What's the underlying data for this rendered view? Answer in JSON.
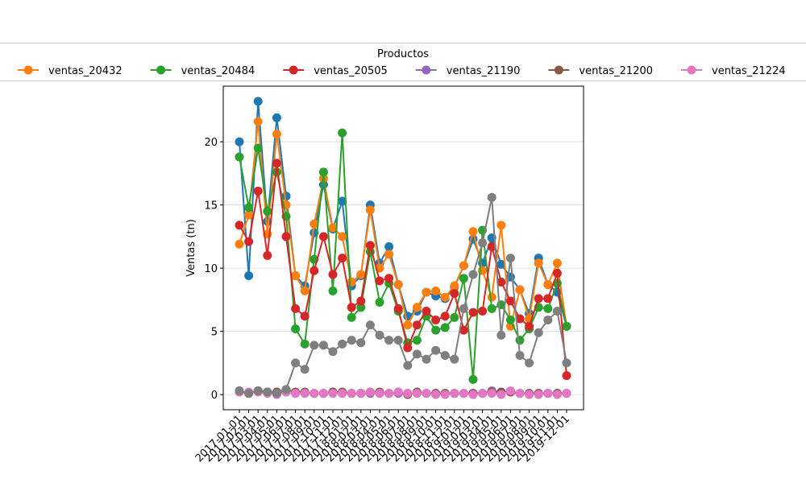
{
  "chart_data": {
    "type": "line",
    "ylabel": "Ventas (tn)",
    "legend": {
      "title": "Productos",
      "position": "top"
    },
    "ylim": [
      -1.2,
      24.4
    ],
    "yticks": [
      0,
      5,
      10,
      15,
      20
    ],
    "grid": true,
    "categories": [
      "2017-01-01",
      "2017-02-01",
      "2017-03-01",
      "2017-04-01",
      "2017-05-01",
      "2017-06-01",
      "2017-07-01",
      "2017-08-01",
      "2017-09-01",
      "2017-10-01",
      "2017-11-01",
      "2017-12-01",
      "2018-01-01",
      "2018-02-01",
      "2018-03-01",
      "2018-04-01",
      "2018-05-01",
      "2018-06-01",
      "2018-07-01",
      "2018-08-01",
      "2018-09-01",
      "2018-10-01",
      "2018-11-01",
      "2018-12-01",
      "2019-01-01",
      "2019-02-01",
      "2019-03-01",
      "2019-04-01",
      "2019-05-01",
      "2019-06-01",
      "2019-07-01",
      "2019-08-01",
      "2019-09-01",
      "2019-10-01",
      "2019-11-01",
      "2019-12-01"
    ],
    "series": [
      {
        "color": "#1f77b4",
        "values": [
          20.0,
          9.4,
          23.2,
          13.7,
          21.9,
          15.7,
          9.4,
          8.6,
          12.8,
          16.6,
          13.1,
          15.3,
          8.6,
          9.4,
          15.0,
          10.4,
          11.7,
          8.7,
          6.2,
          6.6,
          8.1,
          7.8,
          7.6,
          8.5,
          10.2,
          12.3,
          10.4,
          12.4,
          10.3,
          9.3,
          8.3,
          6.4,
          10.8,
          8.7,
          8.1,
          5.4
        ]
      },
      {
        "name": "ventas_20432",
        "color": "#ff7f0e",
        "values": [
          11.9,
          14.2,
          21.6,
          12.7,
          20.6,
          15.0,
          9.4,
          8.2,
          13.5,
          17.1,
          13.2,
          12.5,
          8.9,
          9.5,
          14.6,
          10.0,
          11.1,
          8.7,
          5.5,
          6.9,
          8.1,
          8.2,
          7.7,
          8.6,
          10.2,
          12.9,
          9.8,
          7.7,
          13.4,
          5.4,
          8.3,
          6.0,
          10.4,
          8.7,
          10.4,
          5.4
        ]
      },
      {
        "name": "ventas_20484",
        "color": "#2ca02c",
        "values": [
          18.8,
          14.8,
          19.5,
          14.5,
          17.6,
          14.1,
          5.2,
          4.0,
          10.7,
          17.6,
          8.2,
          20.7,
          6.1,
          6.9,
          11.3,
          7.3,
          8.8,
          6.6,
          4.1,
          4.3,
          6.2,
          5.1,
          5.3,
          6.1,
          9.2,
          1.2,
          13.0,
          6.8,
          7.1,
          5.9,
          4.3,
          5.2,
          6.9,
          6.8,
          8.8,
          5.4
        ]
      },
      {
        "name": "ventas_20505",
        "color": "#d62728",
        "values": [
          13.4,
          12.1,
          16.1,
          11.0,
          18.3,
          12.5,
          6.8,
          6.2,
          9.8,
          12.5,
          9.5,
          10.8,
          6.9,
          7.4,
          11.8,
          9.0,
          9.2,
          6.8,
          3.7,
          5.5,
          6.6,
          5.9,
          6.2,
          8.0,
          5.1,
          6.5,
          6.6,
          11.7,
          8.9,
          7.4,
          6.0,
          5.4,
          7.6,
          7.6,
          9.6,
          1.5
        ]
      },
      {
        "name": "ventas_21190",
        "color": "#9467bd",
        "values": [
          0.2,
          0.1,
          0.3,
          0.2,
          0.1,
          0.2,
          0.1,
          0.1,
          0.1,
          0.1,
          0.2,
          0.1,
          0.1,
          0.1,
          0.1,
          0.1,
          0.1,
          0.1,
          0.1,
          0.1,
          0.1,
          0.1,
          0.1,
          0.1,
          0.1,
          0.1,
          0.1,
          0.3,
          0.2,
          0.2,
          0.1,
          0.1,
          0.1,
          0.1,
          0.1,
          0.1
        ]
      },
      {
        "name": "ventas_21200",
        "color": "#8c564b",
        "values": [
          0.3,
          0.1,
          0.3,
          0.2,
          0.2,
          0.4,
          0.2,
          0.2,
          0.1,
          0.1,
          0.2,
          0.2,
          0.1,
          0.1,
          0.2,
          0.2,
          0.1,
          0.2,
          0.0,
          0.2,
          0.1,
          0.1,
          0.1,
          0.1,
          0.1,
          0.1,
          0.1,
          0.2,
          0.2,
          0.2,
          0.1,
          0.1,
          0.1,
          0.1,
          0.1,
          0.1
        ]
      },
      {
        "name": "ventas_21224",
        "color": "#e377c2",
        "values": [
          0.2,
          0.2,
          0.2,
          0.1,
          0.0,
          0.2,
          0.1,
          0.1,
          0.1,
          0.1,
          0.1,
          0.1,
          0.1,
          0.1,
          0.2,
          0.1,
          0.1,
          0.2,
          0.1,
          0.1,
          0.1,
          0.0,
          0.0,
          0.1,
          0.1,
          0.0,
          0.1,
          0.1,
          0.0,
          0.3,
          0.1,
          0.0,
          0.0,
          0.1,
          0.0,
          0.1
        ]
      },
      {
        "color": "#7f7f7f",
        "values": [
          0.3,
          0.1,
          0.3,
          0.2,
          0.1,
          0.4,
          2.5,
          2.0,
          3.9,
          3.9,
          3.4,
          4.0,
          4.3,
          4.1,
          5.5,
          4.7,
          4.3,
          4.3,
          2.3,
          3.2,
          2.8,
          3.5,
          3.1,
          2.8,
          6.8,
          9.5,
          12.0,
          15.6,
          4.7,
          10.8,
          3.1,
          2.5,
          4.9,
          5.9,
          6.6,
          2.5
        ]
      }
    ]
  }
}
